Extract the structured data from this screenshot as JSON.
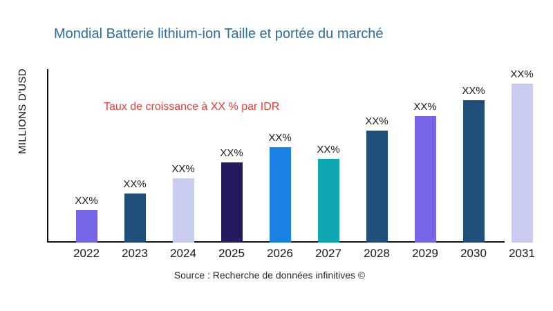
{
  "header": {
    "title": "Mondial Batterie lithium-ion Taille et portée du marché"
  },
  "annotation": {
    "growth_note": "Taux de croissance à XX % par IDR"
  },
  "axes": {
    "y_label": "MILLIONS D'USD"
  },
  "footer": {
    "source": "Source : Recherche de données infinitives ©"
  },
  "colors": {
    "title_text": "#2E6D9C",
    "annotation_text": "#EA3B34",
    "axis_line": "#111111",
    "purple_bar": "#7666E8",
    "navy_bar": "#1F4E7B",
    "lavender_bar": "#C9CEF0",
    "indigo_bar": "#241A60",
    "blue_bar": "#1982E2",
    "teal_bar": "#0EA6B2"
  },
  "chart_data": {
    "type": "bar",
    "title": "Mondial Batterie lithium-ion Taille et portée du marché",
    "xlabel": "",
    "ylabel": "MILLIONS D'USD",
    "categories": [
      "2022",
      "2023",
      "2024",
      "2025",
      "2026",
      "2027",
      "2028",
      "2029",
      "2030",
      "2031"
    ],
    "values": [
      18.8,
      28.4,
      37.2,
      46.4,
      55.2,
      48.4,
      64.8,
      73.2,
      82.4,
      92.0
    ],
    "bar_labels": [
      "XX%",
      "XX%",
      "XX%",
      "XX%",
      "XX%",
      "XX%",
      "XX%",
      "XX%",
      "XX%",
      "XX%"
    ],
    "bar_colors": [
      "#7666E8",
      "#1F4E7B",
      "#C9CEF0",
      "#241A60",
      "#1982E2",
      "#0EA6B2",
      "#1F4E7B",
      "#7666E8",
      "#1F4E7B",
      "#C9CEF0"
    ],
    "ylim": [
      0,
      100
    ],
    "grid": false,
    "legend": false
  }
}
